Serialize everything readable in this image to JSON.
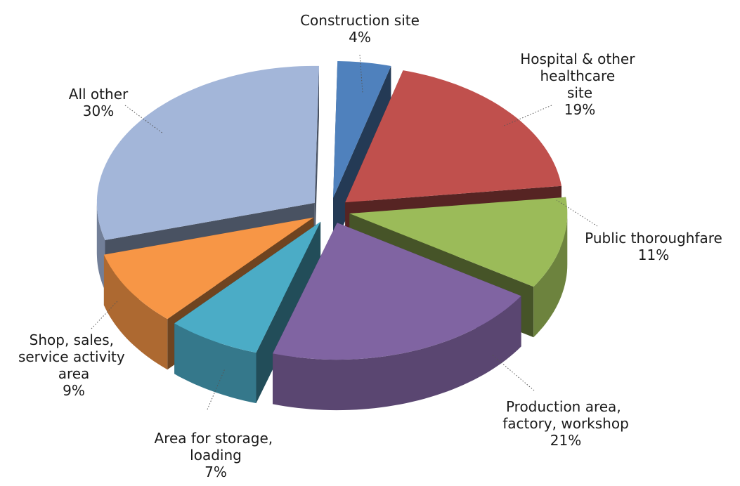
{
  "chart_data": {
    "type": "pie3d",
    "categories": [
      "Construction site",
      "Hospital & other healthcare site",
      "Public thoroughfare",
      "Production area, factory, workshop",
      "Area for storage, loading",
      "Shop, sales, service activity area",
      "All other"
    ],
    "values": [
      4,
      19,
      11,
      21,
      7,
      9,
      30
    ],
    "value_labels": [
      "4%",
      "19%",
      "11%",
      "21%",
      "7%",
      "9%",
      "30%"
    ],
    "colors": [
      "#4f81bd",
      "#c0504d",
      "#9bbb59",
      "#8064a2",
      "#4bacc6",
      "#f79646",
      "#a3b6d9"
    ]
  }
}
